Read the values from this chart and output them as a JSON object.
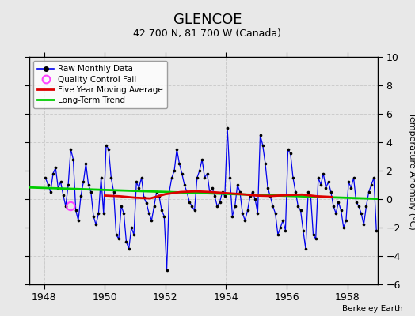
{
  "title": "GLENCOE",
  "subtitle": "42.700 N, 81.700 W (Canada)",
  "ylabel": "Temperature Anomaly (°C)",
  "credit": "Berkeley Earth",
  "xlim": [
    1947.5,
    1959.0
  ],
  "ylim": [
    -6,
    10
  ],
  "yticks": [
    -6,
    -4,
    -2,
    0,
    2,
    4,
    6,
    8,
    10
  ],
  "xticks": [
    1948,
    1950,
    1952,
    1954,
    1956,
    1958
  ],
  "bg_color": "#e8e8e8",
  "plot_bg_color": "#e8e8e8",
  "raw_color": "#0000ee",
  "ma_color": "#dd0000",
  "trend_color": "#00cc00",
  "qc_color": "#ff44ff",
  "raw_data_x": [
    1948.042,
    1948.125,
    1948.208,
    1948.292,
    1948.375,
    1948.458,
    1948.542,
    1948.625,
    1948.708,
    1948.792,
    1948.875,
    1948.958,
    1949.042,
    1949.125,
    1949.208,
    1949.292,
    1949.375,
    1949.458,
    1949.542,
    1949.625,
    1949.708,
    1949.792,
    1949.875,
    1949.958,
    1950.042,
    1950.125,
    1950.208,
    1950.292,
    1950.375,
    1950.458,
    1950.542,
    1950.625,
    1950.708,
    1950.792,
    1950.875,
    1950.958,
    1951.042,
    1951.125,
    1951.208,
    1951.292,
    1951.375,
    1951.458,
    1951.542,
    1951.625,
    1951.708,
    1951.792,
    1951.875,
    1951.958,
    1952.042,
    1952.125,
    1952.208,
    1952.292,
    1952.375,
    1952.458,
    1952.542,
    1952.625,
    1952.708,
    1952.792,
    1952.875,
    1952.958,
    1953.042,
    1953.125,
    1953.208,
    1953.292,
    1953.375,
    1953.458,
    1953.542,
    1953.625,
    1953.708,
    1953.792,
    1953.875,
    1953.958,
    1954.042,
    1954.125,
    1954.208,
    1954.292,
    1954.375,
    1954.458,
    1954.542,
    1954.625,
    1954.708,
    1954.792,
    1954.875,
    1954.958,
    1955.042,
    1955.125,
    1955.208,
    1955.292,
    1955.375,
    1955.458,
    1955.542,
    1955.625,
    1955.708,
    1955.792,
    1955.875,
    1955.958,
    1956.042,
    1956.125,
    1956.208,
    1956.292,
    1956.375,
    1956.458,
    1956.542,
    1956.625,
    1956.708,
    1956.792,
    1956.875,
    1956.958,
    1957.042,
    1957.125,
    1957.208,
    1957.292,
    1957.375,
    1957.458,
    1957.542,
    1957.625,
    1957.708,
    1957.792,
    1957.875,
    1957.958,
    1958.042,
    1958.125,
    1958.208,
    1958.292,
    1958.375,
    1958.458,
    1958.542,
    1958.625,
    1958.708,
    1958.792,
    1958.875,
    1958.958
  ],
  "raw_data_y": [
    1.5,
    1.0,
    0.5,
    1.8,
    2.2,
    0.8,
    1.2,
    0.3,
    -0.5,
    1.0,
    3.5,
    2.8,
    -0.8,
    -1.5,
    0.2,
    1.2,
    2.5,
    1.0,
    0.5,
    -1.2,
    -1.8,
    -1.0,
    1.5,
    -1.0,
    3.8,
    3.5,
    1.5,
    0.5,
    -2.5,
    -2.8,
    -0.5,
    -1.0,
    -3.0,
    -3.5,
    -2.0,
    -2.5,
    1.2,
    0.8,
    1.5,
    0.1,
    -0.3,
    -1.0,
    -1.5,
    -0.5,
    0.5,
    0.2,
    -0.8,
    -1.2,
    -5.0,
    0.5,
    1.5,
    2.0,
    3.5,
    2.5,
    1.8,
    1.0,
    0.5,
    -0.2,
    -0.5,
    -0.8,
    1.5,
    2.0,
    2.8,
    1.5,
    1.8,
    0.5,
    0.8,
    0.2,
    -0.5,
    -0.2,
    0.5,
    0.2,
    5.0,
    1.5,
    -1.2,
    -0.5,
    1.0,
    0.5,
    -1.0,
    -1.5,
    -0.8,
    0.2,
    0.5,
    0.0,
    -1.0,
    4.5,
    3.8,
    2.5,
    0.8,
    0.2,
    -0.5,
    -1.0,
    -2.5,
    -2.0,
    -1.5,
    -2.2,
    3.5,
    3.2,
    1.5,
    0.5,
    -0.5,
    -0.8,
    -2.2,
    -3.5,
    0.5,
    0.2,
    -2.5,
    -2.8,
    1.5,
    1.0,
    1.8,
    0.8,
    1.2,
    0.5,
    -0.5,
    -1.0,
    -0.2,
    -0.8,
    -2.0,
    -1.5,
    1.2,
    0.8,
    1.5,
    -0.2,
    -0.5,
    -1.0,
    -1.8,
    -0.5,
    0.5,
    1.0,
    1.5,
    -2.2
  ],
  "qc_fail_x": [
    1948.875
  ],
  "qc_fail_y": [
    -0.5
  ],
  "trend_x": [
    1947.5,
    1959.0
  ],
  "trend_y": [
    0.82,
    0.02
  ],
  "ma_x": [
    1950.0,
    1950.5,
    1951.0,
    1951.5,
    1952.0,
    1952.5,
    1953.0,
    1953.5,
    1954.0,
    1954.5,
    1955.0,
    1955.5,
    1956.0,
    1956.5,
    1957.0,
    1957.5
  ],
  "ma_y": [
    0.25,
    0.2,
    0.1,
    0.05,
    0.35,
    0.5,
    0.55,
    0.5,
    0.42,
    0.35,
    0.25,
    0.22,
    0.28,
    0.32,
    0.2,
    0.15
  ]
}
